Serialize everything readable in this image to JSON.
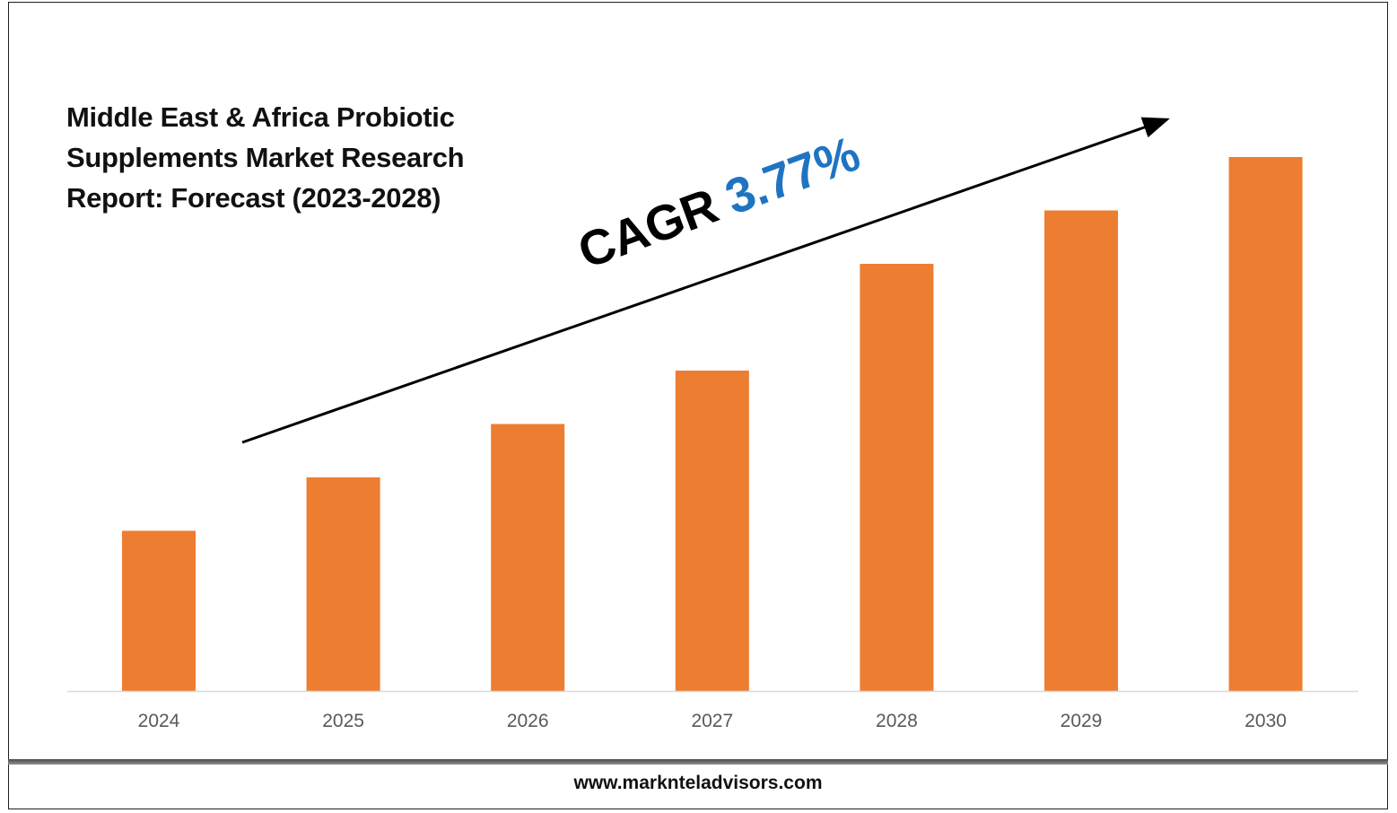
{
  "chart_data": {
    "type": "bar",
    "title": "Middle East & Africa Probiotic Supplements Market Research Report: Forecast (2023-2028)",
    "categories": [
      "2024",
      "2025",
      "2026",
      "2027",
      "2028",
      "2029",
      "2030"
    ],
    "values": [
      30,
      40,
      50,
      60,
      80,
      90,
      100
    ],
    "ylim": [
      0,
      100
    ],
    "grid": false,
    "bar_color": "#ED7D31",
    "annotation": {
      "label": "CAGR",
      "value": "3.77%",
      "value_color": "#1F74C2"
    }
  },
  "footer": {
    "url": "www.marknteladvisors.com"
  }
}
